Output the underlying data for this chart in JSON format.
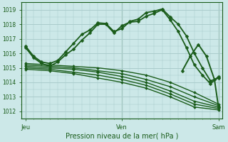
{
  "xlabel": "Pression niveau de la mer( hPa )",
  "bg_color": "#cce8e8",
  "grid_color": "#aacccc",
  "line_color": "#1a5c1a",
  "ylim": [
    1011.5,
    1019.5
  ],
  "xlim": [
    -0.04,
    2.04
  ],
  "xtick_labels": [
    "Jeu",
    "Ven",
    "Sam"
  ],
  "xtick_positions": [
    0.0,
    1.0,
    2.0
  ],
  "ytick_values": [
    1012,
    1013,
    1014,
    1015,
    1016,
    1017,
    1018,
    1019
  ],
  "vlines": [
    0.0,
    1.0,
    2.0
  ],
  "series": [
    {
      "x": [
        0.0,
        0.083,
        0.167,
        0.25,
        0.333,
        0.417,
        0.5,
        0.583,
        0.667,
        0.75,
        0.833,
        0.917,
        1.0,
        1.083,
        1.167,
        1.25,
        1.333,
        1.417,
        1.5,
        1.583,
        1.667,
        1.75,
        1.833,
        1.917,
        2.0
      ],
      "y": [
        1016.5,
        1015.8,
        1015.4,
        1015.3,
        1015.5,
        1016.1,
        1016.7,
        1017.3,
        1017.6,
        1018.1,
        1018.05,
        1017.5,
        1017.7,
        1018.2,
        1018.35,
        1018.8,
        1018.9,
        1019.05,
        1018.5,
        1018.0,
        1017.2,
        1016.0,
        1015.0,
        1014.1,
        1014.3
      ],
      "lw": 1.3,
      "ms": 2.5
    },
    {
      "x": [
        0.0,
        0.083,
        0.167,
        0.25,
        0.333,
        0.417,
        0.5,
        0.583,
        0.667,
        0.75,
        0.833,
        0.917,
        1.0,
        1.083,
        1.167,
        1.25,
        1.333,
        1.417,
        1.5,
        1.583,
        1.667,
        1.75,
        1.833,
        1.917,
        2.0
      ],
      "y": [
        1016.4,
        1015.7,
        1015.3,
        1015.1,
        1015.4,
        1015.9,
        1016.3,
        1016.9,
        1017.4,
        1018.0,
        1018.0,
        1017.4,
        1017.9,
        1018.15,
        1018.2,
        1018.55,
        1018.75,
        1019.0,
        1018.3,
        1017.5,
        1016.4,
        1015.2,
        1014.5,
        1013.9,
        1014.4
      ],
      "lw": 1.3,
      "ms": 2.5
    },
    {
      "x": [
        0.0,
        0.25,
        0.5,
        0.75,
        1.0,
        1.25,
        1.5,
        1.75,
        2.0
      ],
      "y": [
        1015.3,
        1015.2,
        1015.1,
        1015.0,
        1014.8,
        1014.5,
        1014.0,
        1013.3,
        1012.5
      ],
      "lw": 1.0,
      "ms": 2.0
    },
    {
      "x": [
        0.0,
        0.25,
        0.5,
        0.75,
        1.0,
        1.25,
        1.5,
        1.75,
        2.0
      ],
      "y": [
        1015.2,
        1015.1,
        1015.0,
        1014.8,
        1014.6,
        1014.2,
        1013.7,
        1013.0,
        1012.4
      ],
      "lw": 1.0,
      "ms": 2.0
    },
    {
      "x": [
        0.0,
        0.25,
        0.5,
        0.75,
        1.0,
        1.25,
        1.5,
        1.75,
        2.0
      ],
      "y": [
        1015.1,
        1015.0,
        1014.9,
        1014.7,
        1014.4,
        1014.0,
        1013.4,
        1012.7,
        1012.3
      ],
      "lw": 1.0,
      "ms": 2.0
    },
    {
      "x": [
        0.0,
        0.25,
        0.5,
        0.75,
        1.0,
        1.25,
        1.5,
        1.75,
        2.0
      ],
      "y": [
        1015.0,
        1014.9,
        1014.7,
        1014.5,
        1014.2,
        1013.8,
        1013.2,
        1012.5,
        1012.2
      ],
      "lw": 1.0,
      "ms": 2.0
    },
    {
      "x": [
        0.0,
        0.25,
        0.5,
        0.75,
        1.0,
        1.25,
        1.5,
        1.75,
        2.0
      ],
      "y": [
        1014.9,
        1014.8,
        1014.6,
        1014.3,
        1014.0,
        1013.6,
        1013.0,
        1012.3,
        1012.1
      ],
      "lw": 1.0,
      "ms": 2.0
    },
    {
      "x": [
        1.625,
        1.708,
        1.792,
        1.875,
        1.958,
        2.0
      ],
      "y": [
        1014.8,
        1015.8,
        1016.6,
        1015.8,
        1014.2,
        1012.3
      ],
      "lw": 1.4,
      "ms": 2.5
    }
  ]
}
